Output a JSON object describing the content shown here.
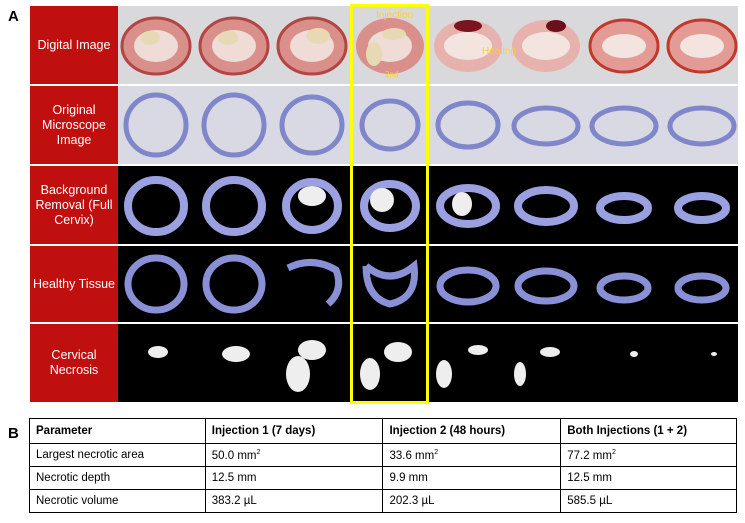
{
  "panel_a": {
    "letter": "A",
    "rows": [
      {
        "label": "Digital Image"
      },
      {
        "label": "Original Microscope Image"
      },
      {
        "label": "Background Removal (Full Cervix)"
      },
      {
        "label": "Healthy Tissue"
      },
      {
        "label": "Cervical Necrosis"
      }
    ],
    "annotations": {
      "injection": "Injection",
      "healing": "Healing",
      "second": "2nd"
    },
    "colors": {
      "label_bg": "#c00f0f",
      "highlight": "#ffff00",
      "annotation": "#ffd21f",
      "tissue_stain": "#7f86c9"
    }
  },
  "panel_b": {
    "letter": "B",
    "headers": [
      "Parameter",
      "Injection 1 (7 days)",
      "Injection 2 (48 hours)",
      "Both Injections (1 + 2)"
    ],
    "rows": [
      {
        "param": "Largest necrotic area",
        "v1": "50.0 mm",
        "v2": "33.6 mm",
        "v3": "77.2 mm",
        "sup": "2"
      },
      {
        "param": "Necrotic depth",
        "v1": "12.5 mm",
        "v2": "9.9 mm",
        "v3": "12.5 mm"
      },
      {
        "param": "Necrotic volume",
        "v1": "383.2 µL",
        "v2": "202.3 µL",
        "v3": "585.5 µL"
      }
    ]
  }
}
